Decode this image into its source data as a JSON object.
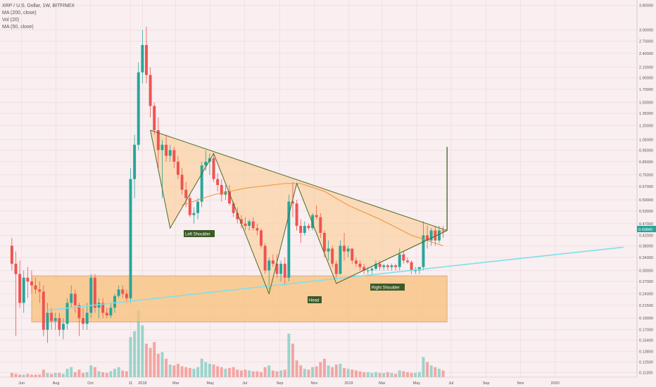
{
  "legend": {
    "title": "XRP / U.S. Dollar, 1W, BITFINEX",
    "ma200": "MA (200, close)",
    "vol": "Vol (20)",
    "ma50": "MA (50, close)"
  },
  "price_badge": "0.43840",
  "colors": {
    "background": "#f9eef0",
    "up": "#26a69a",
    "down": "#ef5350",
    "pattern_fill": "#fbcf9a",
    "zone_fill": "#f9c07a",
    "pattern_line": "#4e6b2e",
    "trendline": "#7fe0e8",
    "ma": "#f08a2c",
    "annotation_bg": "#3b5a26"
  },
  "annotations": {
    "left_shoulder": "Left Shoulder",
    "head": "Head",
    "right_shoulder": "Right Shoulder"
  },
  "chart_data": {
    "type": "candlestick",
    "title": "XRP / U.S. Dollar, 1W, BITFINEX",
    "x_tick_labels": [
      "Jun",
      "Aug",
      "Oct",
      "11",
      "2018",
      "Mar",
      "May",
      "Jul",
      "Sep",
      "Nov",
      "2019",
      "Mar",
      "May",
      "Jul",
      "Sep",
      "Nov",
      "2020"
    ],
    "y_tick_labels": [
      "3.80000",
      "3.00000",
      "2.70000",
      "2.40000",
      "2.10000",
      "1.90000",
      "1.70000",
      "1.50000",
      "1.35000",
      "1.20000",
      "1.05000",
      "0.95000",
      "0.85000",
      "0.75000",
      "0.67000",
      "0.59000",
      "0.53000",
      "0.47000",
      "0.42000",
      "0.38000",
      "0.34000",
      "0.30000",
      "0.27000",
      "0.24000",
      "0.21500",
      "0.19000",
      "0.17000",
      "0.15400",
      "0.13800",
      "0.12500",
      "0.11300"
    ],
    "y_scale": "log",
    "last_price": 0.4384,
    "ohlc": [
      {
        "date": "2017-05-15",
        "o": 0.38,
        "h": 0.41,
        "l": 0.3,
        "c": 0.32
      },
      {
        "date": "2017-05-22",
        "o": 0.32,
        "h": 0.36,
        "l": 0.16,
        "c": 0.29
      },
      {
        "date": "2017-05-29",
        "o": 0.29,
        "h": 0.33,
        "l": 0.21,
        "c": 0.22
      },
      {
        "date": "2017-06-05",
        "o": 0.22,
        "h": 0.3,
        "l": 0.2,
        "c": 0.28
      },
      {
        "date": "2017-06-12",
        "o": 0.28,
        "h": 0.31,
        "l": 0.23,
        "c": 0.27
      },
      {
        "date": "2017-06-19",
        "o": 0.27,
        "h": 0.3,
        "l": 0.24,
        "c": 0.26
      },
      {
        "date": "2017-06-26",
        "o": 0.26,
        "h": 0.28,
        "l": 0.24,
        "c": 0.25
      },
      {
        "date": "2017-07-03",
        "o": 0.25,
        "h": 0.27,
        "l": 0.22,
        "c": 0.245
      },
      {
        "date": "2017-07-10",
        "o": 0.245,
        "h": 0.26,
        "l": 0.16,
        "c": 0.17
      },
      {
        "date": "2017-07-17",
        "o": 0.17,
        "h": 0.22,
        "l": 0.15,
        "c": 0.2
      },
      {
        "date": "2017-07-24",
        "o": 0.2,
        "h": 0.21,
        "l": 0.17,
        "c": 0.185
      },
      {
        "date": "2017-07-31",
        "o": 0.185,
        "h": 0.2,
        "l": 0.17,
        "c": 0.19
      },
      {
        "date": "2017-08-07",
        "o": 0.19,
        "h": 0.2,
        "l": 0.16,
        "c": 0.17
      },
      {
        "date": "2017-08-14",
        "o": 0.17,
        "h": 0.19,
        "l": 0.155,
        "c": 0.18
      },
      {
        "date": "2017-08-21",
        "o": 0.18,
        "h": 0.23,
        "l": 0.17,
        "c": 0.22
      },
      {
        "date": "2017-08-28",
        "o": 0.22,
        "h": 0.26,
        "l": 0.21,
        "c": 0.24
      },
      {
        "date": "2017-09-04",
        "o": 0.24,
        "h": 0.25,
        "l": 0.2,
        "c": 0.215
      },
      {
        "date": "2017-09-11",
        "o": 0.215,
        "h": 0.22,
        "l": 0.16,
        "c": 0.19
      },
      {
        "date": "2017-09-18",
        "o": 0.19,
        "h": 0.21,
        "l": 0.17,
        "c": 0.18
      },
      {
        "date": "2017-09-25",
        "o": 0.18,
        "h": 0.22,
        "l": 0.17,
        "c": 0.2
      },
      {
        "date": "2017-10-02",
        "o": 0.2,
        "h": 0.29,
        "l": 0.19,
        "c": 0.28
      },
      {
        "date": "2017-10-09",
        "o": 0.28,
        "h": 0.29,
        "l": 0.2,
        "c": 0.21
      },
      {
        "date": "2017-10-16",
        "o": 0.21,
        "h": 0.23,
        "l": 0.19,
        "c": 0.22
      },
      {
        "date": "2017-10-23",
        "o": 0.22,
        "h": 0.23,
        "l": 0.19,
        "c": 0.2
      },
      {
        "date": "2017-10-30",
        "o": 0.2,
        "h": 0.21,
        "l": 0.19,
        "c": 0.195
      },
      {
        "date": "2017-11-06",
        "o": 0.195,
        "h": 0.22,
        "l": 0.19,
        "c": 0.21
      },
      {
        "date": "2017-11-13",
        "o": 0.21,
        "h": 0.24,
        "l": 0.2,
        "c": 0.235
      },
      {
        "date": "2017-11-20",
        "o": 0.235,
        "h": 0.26,
        "l": 0.23,
        "c": 0.25
      },
      {
        "date": "2017-11-27",
        "o": 0.25,
        "h": 0.26,
        "l": 0.23,
        "c": 0.24
      },
      {
        "date": "2017-12-04",
        "o": 0.24,
        "h": 0.25,
        "l": 0.22,
        "c": 0.23
      },
      {
        "date": "2017-12-11",
        "o": 0.23,
        "h": 0.8,
        "l": 0.22,
        "c": 0.72
      },
      {
        "date": "2017-12-18",
        "o": 0.72,
        "h": 1.1,
        "l": 0.6,
        "c": 1.0
      },
      {
        "date": "2017-12-25",
        "o": 1.0,
        "h": 2.2,
        "l": 0.95,
        "c": 2.0
      },
      {
        "date": "2018-01-01",
        "o": 2.0,
        "h": 3.0,
        "l": 1.8,
        "c": 2.6
      },
      {
        "date": "2018-01-08",
        "o": 2.6,
        "h": 3.1,
        "l": 1.8,
        "c": 1.95
      },
      {
        "date": "2018-01-15",
        "o": 1.95,
        "h": 2.1,
        "l": 1.3,
        "c": 1.45
      },
      {
        "date": "2018-01-22",
        "o": 1.45,
        "h": 1.5,
        "l": 1.1,
        "c": 1.15
      },
      {
        "date": "2018-01-29",
        "o": 1.15,
        "h": 1.3,
        "l": 0.8,
        "c": 0.95
      },
      {
        "date": "2018-02-05",
        "o": 0.95,
        "h": 1.05,
        "l": 0.6,
        "c": 1.0
      },
      {
        "date": "2018-02-12",
        "o": 1.0,
        "h": 1.1,
        "l": 0.85,
        "c": 0.9
      },
      {
        "date": "2018-02-19",
        "o": 0.9,
        "h": 1.0,
        "l": 0.85,
        "c": 0.95
      },
      {
        "date": "2018-02-26",
        "o": 0.95,
        "h": 0.98,
        "l": 0.8,
        "c": 0.85
      },
      {
        "date": "2018-03-05",
        "o": 0.85,
        "h": 0.9,
        "l": 0.72,
        "c": 0.75
      },
      {
        "date": "2018-03-12",
        "o": 0.75,
        "h": 0.8,
        "l": 0.62,
        "c": 0.65
      },
      {
        "date": "2018-03-19",
        "o": 0.65,
        "h": 0.7,
        "l": 0.55,
        "c": 0.6
      },
      {
        "date": "2018-03-26",
        "o": 0.6,
        "h": 0.62,
        "l": 0.5,
        "c": 0.51
      },
      {
        "date": "2018-04-02",
        "o": 0.51,
        "h": 0.55,
        "l": 0.47,
        "c": 0.52
      },
      {
        "date": "2018-04-09",
        "o": 0.52,
        "h": 0.6,
        "l": 0.49,
        "c": 0.58
      },
      {
        "date": "2018-04-16",
        "o": 0.58,
        "h": 0.85,
        "l": 0.55,
        "c": 0.82
      },
      {
        "date": "2018-04-23",
        "o": 0.82,
        "h": 0.95,
        "l": 0.78,
        "c": 0.85
      },
      {
        "date": "2018-04-30",
        "o": 0.85,
        "h": 0.92,
        "l": 0.75,
        "c": 0.88
      },
      {
        "date": "2018-05-07",
        "o": 0.88,
        "h": 0.92,
        "l": 0.7,
        "c": 0.72
      },
      {
        "date": "2018-05-14",
        "o": 0.72,
        "h": 0.76,
        "l": 0.64,
        "c": 0.68
      },
      {
        "date": "2018-05-21",
        "o": 0.68,
        "h": 0.72,
        "l": 0.58,
        "c": 0.62
      },
      {
        "date": "2018-05-28",
        "o": 0.62,
        "h": 0.68,
        "l": 0.59,
        "c": 0.64
      },
      {
        "date": "2018-06-04",
        "o": 0.64,
        "h": 0.68,
        "l": 0.56,
        "c": 0.57
      },
      {
        "date": "2018-06-11",
        "o": 0.57,
        "h": 0.58,
        "l": 0.5,
        "c": 0.52
      },
      {
        "date": "2018-06-18",
        "o": 0.52,
        "h": 0.55,
        "l": 0.47,
        "c": 0.49
      },
      {
        "date": "2018-06-25",
        "o": 0.49,
        "h": 0.51,
        "l": 0.45,
        "c": 0.47
      },
      {
        "date": "2018-07-02",
        "o": 0.47,
        "h": 0.5,
        "l": 0.44,
        "c": 0.46
      },
      {
        "date": "2018-07-09",
        "o": 0.46,
        "h": 0.49,
        "l": 0.44,
        "c": 0.48
      },
      {
        "date": "2018-07-16",
        "o": 0.48,
        "h": 0.5,
        "l": 0.44,
        "c": 0.45
      },
      {
        "date": "2018-07-23",
        "o": 0.45,
        "h": 0.47,
        "l": 0.42,
        "c": 0.44
      },
      {
        "date": "2018-07-30",
        "o": 0.44,
        "h": 0.45,
        "l": 0.37,
        "c": 0.38
      },
      {
        "date": "2018-08-06",
        "o": 0.38,
        "h": 0.39,
        "l": 0.29,
        "c": 0.3
      },
      {
        "date": "2018-08-13",
        "o": 0.3,
        "h": 0.34,
        "l": 0.25,
        "c": 0.33
      },
      {
        "date": "2018-08-20",
        "o": 0.33,
        "h": 0.35,
        "l": 0.31,
        "c": 0.32
      },
      {
        "date": "2018-08-27",
        "o": 0.32,
        "h": 0.35,
        "l": 0.28,
        "c": 0.29
      },
      {
        "date": "2018-09-03",
        "o": 0.29,
        "h": 0.33,
        "l": 0.27,
        "c": 0.32
      },
      {
        "date": "2018-09-10",
        "o": 0.32,
        "h": 0.34,
        "l": 0.26,
        "c": 0.28
      },
      {
        "date": "2018-09-17",
        "o": 0.28,
        "h": 0.62,
        "l": 0.27,
        "c": 0.58
      },
      {
        "date": "2018-09-24",
        "o": 0.58,
        "h": 0.7,
        "l": 0.5,
        "c": 0.57
      },
      {
        "date": "2018-10-01",
        "o": 0.57,
        "h": 0.59,
        "l": 0.44,
        "c": 0.46
      },
      {
        "date": "2018-10-08",
        "o": 0.46,
        "h": 0.49,
        "l": 0.39,
        "c": 0.43
      },
      {
        "date": "2018-10-15",
        "o": 0.43,
        "h": 0.48,
        "l": 0.42,
        "c": 0.46
      },
      {
        "date": "2018-10-22",
        "o": 0.46,
        "h": 0.47,
        "l": 0.44,
        "c": 0.45
      },
      {
        "date": "2018-10-29",
        "o": 0.45,
        "h": 0.52,
        "l": 0.44,
        "c": 0.51
      },
      {
        "date": "2018-11-05",
        "o": 0.51,
        "h": 0.56,
        "l": 0.49,
        "c": 0.5
      },
      {
        "date": "2018-11-12",
        "o": 0.5,
        "h": 0.52,
        "l": 0.41,
        "c": 0.43
      },
      {
        "date": "2018-11-19",
        "o": 0.43,
        "h": 0.44,
        "l": 0.34,
        "c": 0.36
      },
      {
        "date": "2018-11-26",
        "o": 0.36,
        "h": 0.4,
        "l": 0.33,
        "c": 0.37
      },
      {
        "date": "2018-12-03",
        "o": 0.37,
        "h": 0.38,
        "l": 0.31,
        "c": 0.32
      },
      {
        "date": "2018-12-10",
        "o": 0.32,
        "h": 0.33,
        "l": 0.28,
        "c": 0.29
      },
      {
        "date": "2018-12-17",
        "o": 0.29,
        "h": 0.4,
        "l": 0.29,
        "c": 0.38
      },
      {
        "date": "2018-12-24",
        "o": 0.38,
        "h": 0.43,
        "l": 0.33,
        "c": 0.36
      },
      {
        "date": "2018-12-31",
        "o": 0.36,
        "h": 0.38,
        "l": 0.34,
        "c": 0.37
      },
      {
        "date": "2019-01-07",
        "o": 0.37,
        "h": 0.37,
        "l": 0.32,
        "c": 0.33
      },
      {
        "date": "2019-01-14",
        "o": 0.33,
        "h": 0.34,
        "l": 0.31,
        "c": 0.32
      },
      {
        "date": "2019-01-21",
        "o": 0.32,
        "h": 0.33,
        "l": 0.3,
        "c": 0.31
      },
      {
        "date": "2019-01-28",
        "o": 0.31,
        "h": 0.32,
        "l": 0.29,
        "c": 0.3
      },
      {
        "date": "2019-02-04",
        "o": 0.3,
        "h": 0.31,
        "l": 0.29,
        "c": 0.3
      },
      {
        "date": "2019-02-11",
        "o": 0.3,
        "h": 0.31,
        "l": 0.29,
        "c": 0.305
      },
      {
        "date": "2019-02-18",
        "o": 0.305,
        "h": 0.33,
        "l": 0.3,
        "c": 0.32
      },
      {
        "date": "2019-02-25",
        "o": 0.32,
        "h": 0.33,
        "l": 0.3,
        "c": 0.31
      },
      {
        "date": "2019-03-04",
        "o": 0.31,
        "h": 0.32,
        "l": 0.3,
        "c": 0.315
      },
      {
        "date": "2019-03-11",
        "o": 0.315,
        "h": 0.32,
        "l": 0.3,
        "c": 0.31
      },
      {
        "date": "2019-03-18",
        "o": 0.31,
        "h": 0.32,
        "l": 0.3,
        "c": 0.315
      },
      {
        "date": "2019-03-25",
        "o": 0.315,
        "h": 0.32,
        "l": 0.3,
        "c": 0.31
      },
      {
        "date": "2019-04-01",
        "o": 0.31,
        "h": 0.37,
        "l": 0.3,
        "c": 0.35
      },
      {
        "date": "2019-04-08",
        "o": 0.35,
        "h": 0.36,
        "l": 0.32,
        "c": 0.33
      },
      {
        "date": "2019-04-15",
        "o": 0.33,
        "h": 0.34,
        "l": 0.32,
        "c": 0.325
      },
      {
        "date": "2019-04-22",
        "o": 0.325,
        "h": 0.33,
        "l": 0.29,
        "c": 0.3
      },
      {
        "date": "2019-04-29",
        "o": 0.3,
        "h": 0.31,
        "l": 0.29,
        "c": 0.3
      },
      {
        "date": "2019-05-06",
        "o": 0.3,
        "h": 0.31,
        "l": 0.29,
        "c": 0.31
      },
      {
        "date": "2019-05-13",
        "o": 0.31,
        "h": 0.48,
        "l": 0.3,
        "c": 0.42
      },
      {
        "date": "2019-05-20",
        "o": 0.42,
        "h": 0.46,
        "l": 0.37,
        "c": 0.4
      },
      {
        "date": "2019-05-27",
        "o": 0.4,
        "h": 0.45,
        "l": 0.38,
        "c": 0.44
      },
      {
        "date": "2019-06-03",
        "o": 0.44,
        "h": 0.46,
        "l": 0.38,
        "c": 0.4
      },
      {
        "date": "2019-06-10",
        "o": 0.4,
        "h": 0.46,
        "l": 0.39,
        "c": 0.44
      },
      {
        "date": "2019-06-17",
        "o": 0.44,
        "h": 0.46,
        "l": 0.41,
        "c": 0.4384
      }
    ],
    "volume": [
      5,
      4,
      3,
      3,
      4,
      3,
      3,
      3,
      9,
      5,
      4,
      5,
      5,
      4,
      10,
      12,
      6,
      9,
      5,
      6,
      14,
      12,
      7,
      6,
      5,
      7,
      10,
      12,
      8,
      7,
      48,
      55,
      80,
      62,
      40,
      35,
      42,
      28,
      30,
      22,
      15,
      14,
      16,
      13,
      12,
      11,
      10,
      12,
      22,
      18,
      16,
      15,
      13,
      12,
      10,
      11,
      12,
      9,
      8,
      9,
      8,
      7,
      7,
      6,
      12,
      14,
      8,
      7,
      8,
      9,
      52,
      40,
      20,
      14,
      10,
      9,
      12,
      13,
      18,
      22,
      14,
      12,
      15,
      16,
      11,
      10,
      9,
      8,
      7,
      6,
      6,
      5,
      6,
      5,
      5,
      6,
      5,
      4,
      8,
      7,
      6,
      5,
      5,
      6,
      24,
      18,
      14,
      12,
      10,
      8
    ],
    "ma200": [
      {
        "date": "2018-03-12",
        "v": 0.56
      },
      {
        "date": "2018-05-07",
        "v": 0.62
      },
      {
        "date": "2018-07-02",
        "v": 0.66
      },
      {
        "date": "2018-09-10",
        "v": 0.69
      },
      {
        "date": "2018-10-08",
        "v": 0.69
      },
      {
        "date": "2018-11-19",
        "v": 0.64
      },
      {
        "date": "2018-12-31",
        "v": 0.56
      },
      {
        "date": "2019-02-25",
        "v": 0.49
      },
      {
        "date": "2019-04-22",
        "v": 0.42
      },
      {
        "date": "2019-05-20",
        "v": 0.4
      },
      {
        "date": "2019-06-17",
        "v": 0.38
      }
    ],
    "pattern": {
      "neckline": [
        {
          "date": "2018-01-15",
          "v": 1.15
        },
        {
          "date": "2019-06-24",
          "v": 0.44
        }
      ],
      "support": [
        {
          "date": "2018-12-10",
          "v": 0.265
        },
        {
          "date": "2019-06-24",
          "v": 0.44
        }
      ],
      "zigzag": [
        {
          "date": "2018-01-15",
          "v": 1.15
        },
        {
          "date": "2018-02-19",
          "v": 0.45
        },
        {
          "date": "2018-05-07",
          "v": 0.92
        },
        {
          "date": "2018-08-13",
          "v": 0.24
        },
        {
          "date": "2018-10-01",
          "v": 0.69
        },
        {
          "date": "2018-12-10",
          "v": 0.265
        },
        {
          "date": "2019-06-24",
          "v": 0.44
        }
      ],
      "target_line": [
        {
          "date": "2019-06-24",
          "v": 0.44
        },
        {
          "date": "2019-06-24",
          "v": 0.98
        }
      ],
      "zone": {
        "from": "2017-06-19",
        "to": "2019-06-24",
        "top": 0.285,
        "bottom": 0.183
      },
      "trendline": [
        {
          "date": "2017-07-17",
          "v": 0.205
        },
        {
          "date": "2020-05-01",
          "v": 0.375
        }
      ]
    },
    "x_range": [
      "2017-04-24",
      "2020-05-25"
    ],
    "y_range": [
      0.108,
      4.0
    ],
    "legend_position": "top-left"
  }
}
